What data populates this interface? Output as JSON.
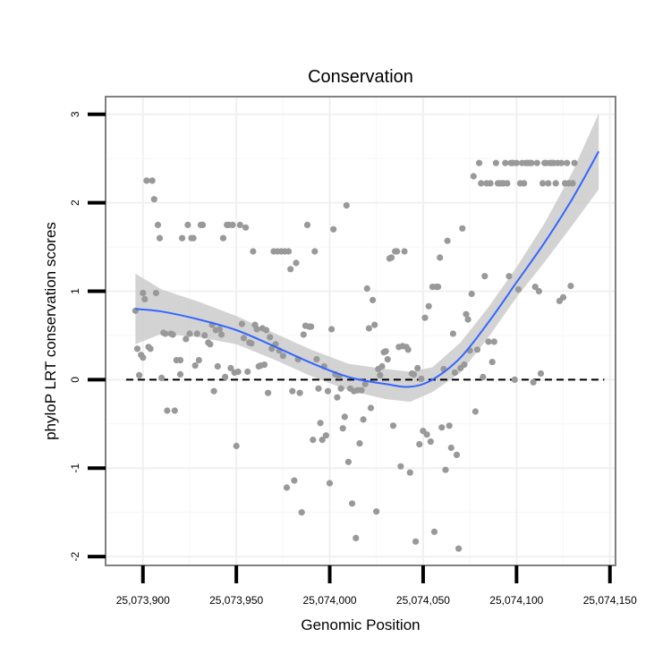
{
  "chart_data": {
    "type": "scatter",
    "title": "Conservation",
    "xlabel": "Genomic Position",
    "ylabel": "phyloP LRT conservation scores",
    "xlim": [
      25073880,
      25074153
    ],
    "ylim": [
      -2.1,
      3.2
    ],
    "x_ticks": [
      25073900,
      25073950,
      25074000,
      25074050,
      25074100,
      25074150
    ],
    "x_tick_labels": [
      "25,073,900",
      "25,073,950",
      "25,074,000",
      "25,074,050",
      "25,074,100",
      "25,074,150"
    ],
    "y_ticks": [
      -2,
      -1,
      0,
      1,
      2,
      3
    ],
    "y_tick_labels": [
      "-2",
      "-1",
      "0",
      "1",
      "2",
      "3"
    ],
    "reference_line": {
      "y": 0,
      "style": "dashed"
    },
    "colors": {
      "points": "#999999",
      "smooth": "#3366ff",
      "ribbon": "#c8c8c8",
      "border": "#808080"
    },
    "smooth": {
      "x": [
        25073896,
        25073910,
        25073930,
        25073950,
        25073970,
        25073990,
        25074010,
        25074030,
        25074043,
        25074055,
        25074070,
        25074085,
        25074100,
        25074115,
        25074130,
        25074144
      ],
      "y": [
        0.8,
        0.77,
        0.68,
        0.56,
        0.38,
        0.19,
        0.03,
        -0.05,
        -0.08,
        0.0,
        0.25,
        0.65,
        1.1,
        1.55,
        2.05,
        2.58
      ],
      "lower": [
        0.4,
        0.52,
        0.48,
        0.4,
        0.23,
        0.04,
        -0.12,
        -0.22,
        -0.25,
        -0.14,
        0.08,
        0.48,
        0.93,
        1.33,
        1.75,
        2.15
      ],
      "upper": [
        1.2,
        1.02,
        0.88,
        0.72,
        0.53,
        0.34,
        0.18,
        0.12,
        0.09,
        0.14,
        0.42,
        0.82,
        1.27,
        1.77,
        2.35,
        3.01
      ]
    },
    "points": [
      [
        25073896,
        0.78
      ],
      [
        25073897,
        0.35
      ],
      [
        25073898,
        0.05
      ],
      [
        25073899,
        0.28
      ],
      [
        25073900,
        0.25
      ],
      [
        25073900,
        0.98
      ],
      [
        25073901,
        0.91
      ],
      [
        25073902,
        2.25
      ],
      [
        25073903,
        0.37
      ],
      [
        25073904,
        0.35
      ],
      [
        25073905,
        2.25
      ],
      [
        25073906,
        2.04
      ],
      [
        25073907,
        0.98
      ],
      [
        25073908,
        1.75
      ],
      [
        25073909,
        1.6
      ],
      [
        25073910,
        0.02
      ],
      [
        25073911,
        0.53
      ],
      [
        25073912,
        0.52
      ],
      [
        25073913,
        -0.35
      ],
      [
        25073915,
        0.52
      ],
      [
        25073916,
        0.51
      ],
      [
        25073917,
        -0.35
      ],
      [
        25073918,
        0.22
      ],
      [
        25073920,
        0.22
      ],
      [
        25073920,
        0.06
      ],
      [
        25073921,
        1.6
      ],
      [
        25073923,
        0.46
      ],
      [
        25073924,
        1.75
      ],
      [
        25073925,
        0.52
      ],
      [
        25073926,
        1.6
      ],
      [
        25073927,
        1.6
      ],
      [
        25073928,
        0.16
      ],
      [
        25073929,
        0.52
      ],
      [
        25073930,
        0.22
      ],
      [
        25073931,
        1.75
      ],
      [
        25073932,
        1.75
      ],
      [
        25073933,
        0.5
      ],
      [
        25073935,
        0.42
      ],
      [
        25073936,
        0.4
      ],
      [
        25073937,
        0.62
      ],
      [
        25073938,
        -0.13
      ],
      [
        25073939,
        0.56
      ],
      [
        25073940,
        0.15
      ],
      [
        25073941,
        0.57
      ],
      [
        25073942,
        0.51
      ],
      [
        25073943,
        1.6
      ],
      [
        25073944,
        0.03
      ],
      [
        25073945,
        1.75
      ],
      [
        25073946,
        1.75
      ],
      [
        25073947,
        0.13
      ],
      [
        25073948,
        1.75
      ],
      [
        25073949,
        0.08
      ],
      [
        25073950,
        -0.75
      ],
      [
        25073951,
        0.09
      ],
      [
        25073952,
        1.75
      ],
      [
        25073953,
        0.63
      ],
      [
        25073954,
        0.47
      ],
      [
        25073955,
        1.72
      ],
      [
        25073956,
        0.09
      ],
      [
        25073957,
        0.42
      ],
      [
        25073958,
        0.41
      ],
      [
        25073959,
        1.45
      ],
      [
        25073960,
        0.62
      ],
      [
        25073961,
        0.57
      ],
      [
        25073962,
        0.15
      ],
      [
        25073963,
        0.16
      ],
      [
        25073964,
        0.58
      ],
      [
        25073965,
        0.17
      ],
      [
        25073966,
        0.56
      ],
      [
        25073967,
        -0.15
      ],
      [
        25073968,
        0.48
      ],
      [
        25073969,
        0.35
      ],
      [
        25073970,
        1.45
      ],
      [
        25073971,
        0.4
      ],
      [
        25073972,
        1.45
      ],
      [
        25073973,
        0.33
      ],
      [
        25073974,
        1.45
      ],
      [
        25073975,
        0.27
      ],
      [
        25073976,
        1.45
      ],
      [
        25073977,
        -1.22
      ],
      [
        25073978,
        1.45
      ],
      [
        25073979,
        1.25
      ],
      [
        25073980,
        -0.13
      ],
      [
        25073981,
        -1.14
      ],
      [
        25073982,
        1.32
      ],
      [
        25073983,
        0.23
      ],
      [
        25073984,
        -0.15
      ],
      [
        25073985,
        -1.5
      ],
      [
        25073986,
        0.51
      ],
      [
        25073987,
        0.61
      ],
      [
        25073988,
        1.75
      ],
      [
        25073989,
        0.6
      ],
      [
        25073990,
        0.6
      ],
      [
        25073991,
        -0.68
      ],
      [
        25073992,
        1.45
      ],
      [
        25073993,
        0.23
      ],
      [
        25073994,
        -0.1
      ],
      [
        25073995,
        -0.49
      ],
      [
        25073996,
        -0.68
      ],
      [
        25073997,
        0.15
      ],
      [
        25073998,
        -0.63
      ],
      [
        25073999,
        -0.13
      ],
      [
        25074000,
        -1.17
      ],
      [
        25074001,
        0.57
      ],
      [
        25074002,
        1.7
      ],
      [
        25074003,
        0.06
      ],
      [
        25074004,
        -0.2
      ],
      [
        25074005,
        0.04
      ],
      [
        25074006,
        -0.1
      ],
      [
        25074007,
        -0.55
      ],
      [
        25074008,
        -0.42
      ],
      [
        25074009,
        1.97
      ],
      [
        25074010,
        -0.93
      ],
      [
        25074011,
        -0.1
      ],
      [
        25074012,
        -1.4
      ],
      [
        25074013,
        -0.13
      ],
      [
        25074014,
        -1.79
      ],
      [
        25074015,
        -0.12
      ],
      [
        25074016,
        -0.72
      ],
      [
        25074017,
        -0.12
      ],
      [
        25074018,
        -0.45
      ],
      [
        25074019,
        -0.05
      ],
      [
        25074020,
        1.03
      ],
      [
        25074021,
        0.58
      ],
      [
        25074022,
        -0.32
      ],
      [
        25074023,
        0.9
      ],
      [
        25074024,
        0.62
      ],
      [
        25074025,
        -1.49
      ],
      [
        25074026,
        0.12
      ],
      [
        25074027,
        0.05
      ],
      [
        25074028,
        0.15
      ],
      [
        25074029,
        0.31
      ],
      [
        25074030,
        0.32
      ],
      [
        25074031,
        0.23
      ],
      [
        25074032,
        1.37
      ],
      [
        25074033,
        1.38
      ],
      [
        25074034,
        -0.52
      ],
      [
        25074035,
        1.45
      ],
      [
        25074036,
        1.45
      ],
      [
        25074037,
        0.37
      ],
      [
        25074038,
        -0.98
      ],
      [
        25074039,
        0.38
      ],
      [
        25074040,
        1.45
      ],
      [
        25074041,
        0.37
      ],
      [
        25074042,
        0.34
      ],
      [
        25074043,
        -1.05
      ],
      [
        25074044,
        0.07
      ],
      [
        25074045,
        0.06
      ],
      [
        25074046,
        -1.83
      ],
      [
        25074047,
        0.13
      ],
      [
        25074048,
        -0.73
      ],
      [
        25074049,
        0.01
      ],
      [
        25074050,
        -0.58
      ],
      [
        25074051,
        0.7
      ],
      [
        25074052,
        -0.62
      ],
      [
        25074053,
        0.83
      ],
      [
        25074054,
        -0.7
      ],
      [
        25074055,
        1.05
      ],
      [
        25074056,
        -1.72
      ],
      [
        25074057,
        1.05
      ],
      [
        25074058,
        1.05
      ],
      [
        25074059,
        1.38
      ],
      [
        25074060,
        -0.54
      ],
      [
        25074061,
        0.12
      ],
      [
        25074062,
        -1.02
      ],
      [
        25074063,
        1.57
      ],
      [
        25074064,
        -0.52
      ],
      [
        25074065,
        -0.77
      ],
      [
        25074066,
        0.52
      ],
      [
        25074067,
        0.08
      ],
      [
        25074068,
        -0.85
      ],
      [
        25074069,
        -1.91
      ],
      [
        25074070,
        0.13
      ],
      [
        25074071,
        1.71
      ],
      [
        25074072,
        0.17
      ],
      [
        25074073,
        0.74
      ],
      [
        25074074,
        0.68
      ],
      [
        25074075,
        0.33
      ],
      [
        25074076,
        0.97
      ],
      [
        25074077,
        2.3
      ],
      [
        25074078,
        -0.36
      ],
      [
        25074079,
        0.34
      ],
      [
        25074080,
        2.45
      ],
      [
        25074081,
        2.22
      ],
      [
        25074082,
        0.03
      ],
      [
        25074083,
        1.17
      ],
      [
        25074084,
        2.22
      ],
      [
        25074085,
        0.43
      ],
      [
        25074086,
        2.22
      ],
      [
        25074087,
        0.2
      ],
      [
        25074088,
        0.43
      ],
      [
        25074089,
        2.45
      ],
      [
        25074090,
        2.22
      ],
      [
        25074091,
        2.22
      ],
      [
        25074092,
        2.22
      ],
      [
        25074093,
        2.22
      ],
      [
        25074094,
        2.45
      ],
      [
        25074095,
        2.22
      ],
      [
        25074096,
        1.17
      ],
      [
        25074097,
        2.45
      ],
      [
        25074098,
        2.45
      ],
      [
        25074099,
        0.0
      ],
      [
        25074100,
        2.45
      ],
      [
        25074101,
        1.02
      ],
      [
        25074102,
        2.22
      ],
      [
        25074103,
        2.45
      ],
      [
        25074104,
        2.22
      ],
      [
        25074105,
        2.45
      ],
      [
        25074106,
        2.45
      ],
      [
        25074107,
        2.45
      ],
      [
        25074108,
        2.45
      ],
      [
        25074109,
        -0.03
      ],
      [
        25074110,
        1.05
      ],
      [
        25074111,
        2.45
      ],
      [
        25074112,
        1.0
      ],
      [
        25074113,
        0.07
      ],
      [
        25074114,
        2.22
      ],
      [
        25074115,
        2.45
      ],
      [
        25074116,
        2.45
      ],
      [
        25074117,
        2.22
      ],
      [
        25074118,
        2.45
      ],
      [
        25074119,
        2.45
      ],
      [
        25074120,
        2.45
      ],
      [
        25074121,
        2.22
      ],
      [
        25074122,
        2.45
      ],
      [
        25074123,
        0.89
      ],
      [
        25074124,
        2.45
      ],
      [
        25074125,
        0.93
      ],
      [
        25074126,
        2.22
      ],
      [
        25074127,
        2.45
      ],
      [
        25074128,
        2.22
      ],
      [
        25074129,
        1.06
      ],
      [
        25074130,
        2.22
      ],
      [
        25074131,
        2.45
      ]
    ]
  }
}
